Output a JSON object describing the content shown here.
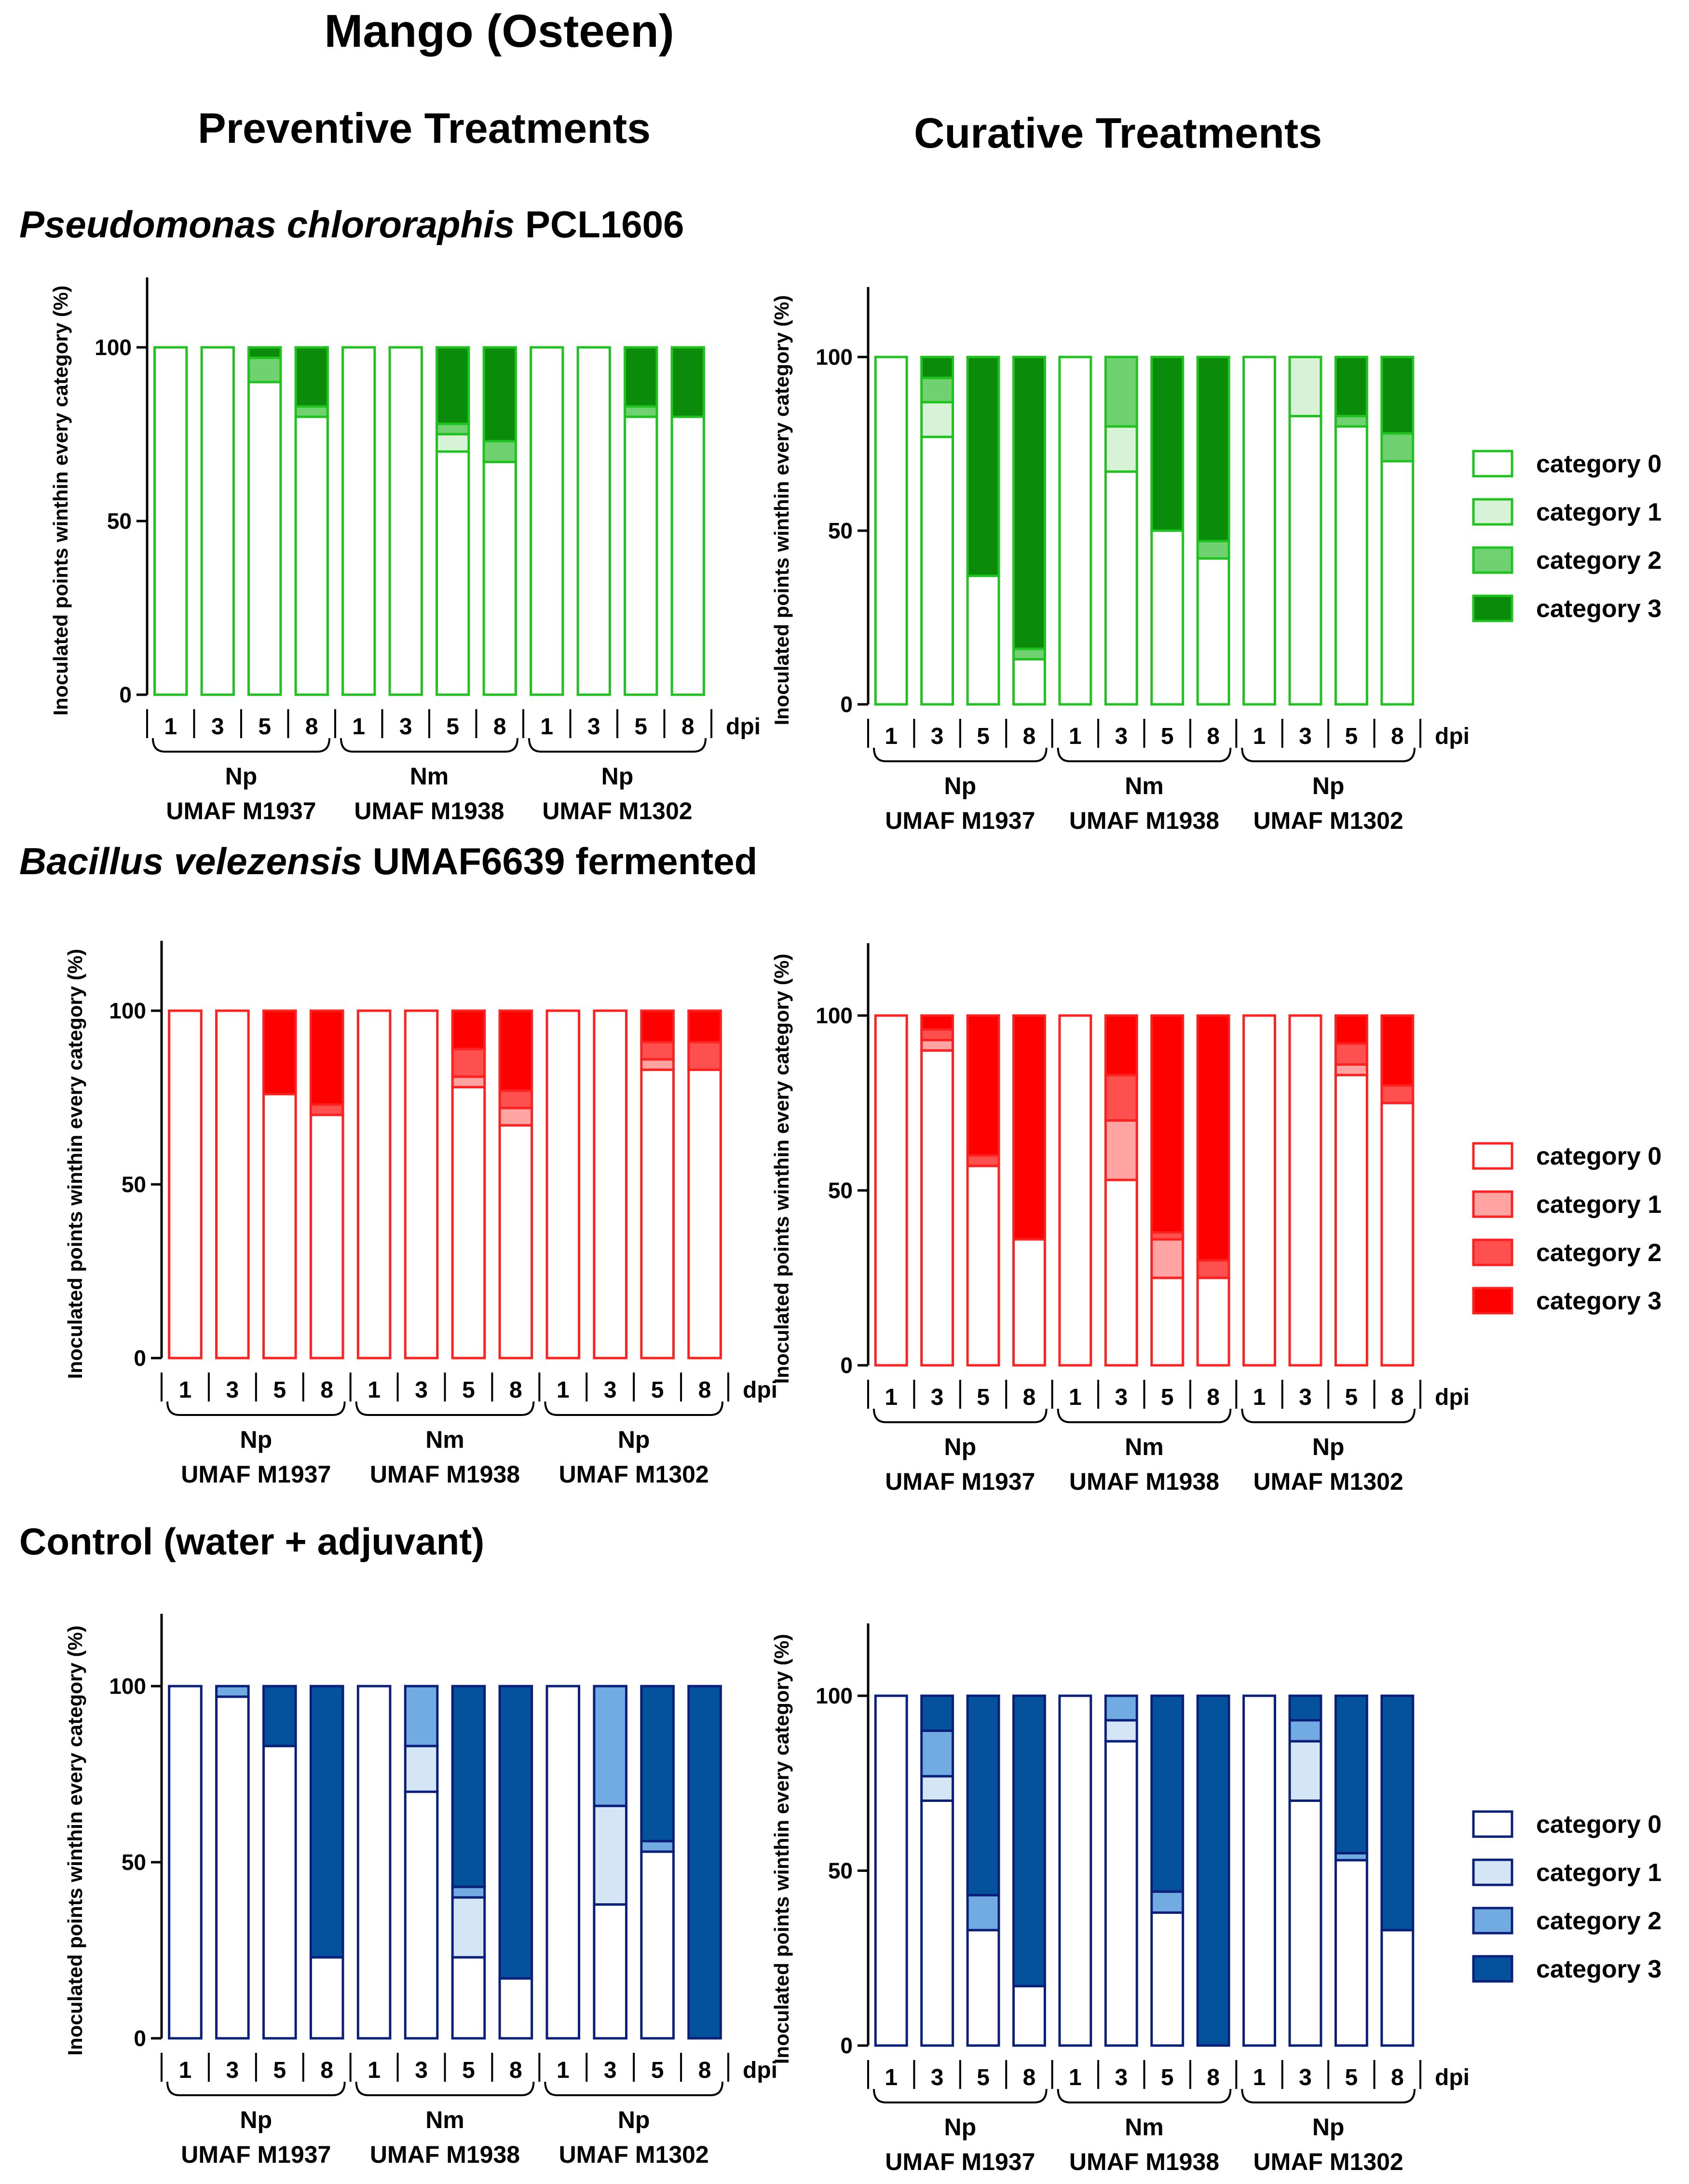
{
  "title": "Mango (Osteen)",
  "column_titles": {
    "preventive": "Preventive Treatments",
    "curative": "Curative Treatments"
  },
  "sections": [
    {
      "organism_italic": "Pseudomonas chlororaphis",
      "organism_rest": " PCL1606"
    },
    {
      "organism_italic": "Bacillus velezensis",
      "organism_rest": " UMAF6639 fermented"
    },
    {
      "organism_italic": "",
      "organism_rest": "Control (water + adjuvant)"
    }
  ],
  "ylabel": "Inoculated points winthin every category (%)",
  "yticks": [
    0,
    50,
    100
  ],
  "ylim": [
    0,
    120
  ],
  "xticks": [
    "1",
    "3",
    "5",
    "8"
  ],
  "dpi_label": "dpi",
  "groups": [
    {
      "species": "Np",
      "isolate": "UMAF M1937"
    },
    {
      "species": "Nm",
      "isolate": "UMAF M1938"
    },
    {
      "species": "Np",
      "isolate": "UMAF M1302"
    }
  ],
  "legend_labels": [
    "category 0",
    "category 1",
    "category 2",
    "category 3"
  ],
  "palettes": [
    {
      "stroke": "#1fc21f",
      "fills": [
        "#ffffff",
        "#d8f2d8",
        "#6fd16f",
        "#0a8c0a"
      ]
    },
    {
      "stroke": "#ff2020",
      "fills": [
        "#ffffff",
        "#ffa3a3",
        "#ff5050",
        "#ff0000"
      ]
    },
    {
      "stroke": "#0a1f7a",
      "fills": [
        "#ffffff",
        "#d4e6f6",
        "#72abe2",
        "#04529c"
      ]
    }
  ],
  "chart_data": [
    {
      "type": "bar",
      "stacked": true,
      "title": "Pseudomonas chlororaphis PCL1606 - Preventive Treatments",
      "ylabel": "Inoculated points winthin every category (%)",
      "xlabel": "dpi",
      "ylim": [
        0,
        120
      ],
      "categories": [
        "Np M1937 1",
        "Np M1937 3",
        "Np M1937 5",
        "Np M1937 8",
        "Nm M1938 1",
        "Nm M1938 3",
        "Nm M1938 5",
        "Nm M1938 8",
        "Np M1302 1",
        "Np M1302 3",
        "Np M1302 5",
        "Np M1302 8"
      ],
      "series": [
        {
          "name": "category 0",
          "values": [
            100,
            100,
            90,
            80,
            100,
            100,
            70,
            67,
            100,
            100,
            80,
            80
          ]
        },
        {
          "name": "category 1",
          "values": [
            0,
            0,
            0,
            0,
            0,
            0,
            5,
            0,
            0,
            0,
            0,
            0
          ]
        },
        {
          "name": "category 2",
          "values": [
            0,
            0,
            7,
            3,
            0,
            0,
            3,
            6,
            0,
            0,
            3,
            0
          ]
        },
        {
          "name": "category 3",
          "values": [
            0,
            0,
            3,
            17,
            0,
            0,
            22,
            27,
            0,
            0,
            17,
            20
          ]
        }
      ]
    },
    {
      "type": "bar",
      "stacked": true,
      "title": "Pseudomonas chlororaphis PCL1606 - Curative Treatments",
      "ylabel": "Inoculated points winthin every category (%)",
      "xlabel": "dpi",
      "ylim": [
        0,
        120
      ],
      "categories": [
        "Np M1937 1",
        "Np M1937 3",
        "Np M1937 5",
        "Np M1937 8",
        "Nm M1938 1",
        "Nm M1938 3",
        "Nm M1938 5",
        "Nm M1938 8",
        "Np M1302 1",
        "Np M1302 3",
        "Np M1302 5",
        "Np M1302 8"
      ],
      "series": [
        {
          "name": "category 0",
          "values": [
            100,
            77,
            37,
            13,
            100,
            67,
            50,
            42,
            100,
            83,
            80,
            70
          ]
        },
        {
          "name": "category 1",
          "values": [
            0,
            10,
            0,
            0,
            0,
            13,
            0,
            0,
            0,
            17,
            0,
            0
          ]
        },
        {
          "name": "category 2",
          "values": [
            0,
            7,
            0,
            3,
            0,
            20,
            0,
            5,
            0,
            0,
            3,
            8
          ]
        },
        {
          "name": "category 3",
          "values": [
            0,
            6,
            63,
            84,
            0,
            0,
            50,
            53,
            0,
            0,
            17,
            22
          ]
        }
      ]
    },
    {
      "type": "bar",
      "stacked": true,
      "title": "Bacillus velezensis UMAF6639 fermented - Preventive Treatments",
      "ylabel": "Inoculated points winthin every category (%)",
      "xlabel": "dpi",
      "ylim": [
        0,
        120
      ],
      "categories": [
        "Np M1937 1",
        "Np M1937 3",
        "Np M1937 5",
        "Np M1937 8",
        "Nm M1938 1",
        "Nm M1938 3",
        "Nm M1938 5",
        "Nm M1938 8",
        "Np M1302 1",
        "Np M1302 3",
        "Np M1302 5",
        "Np M1302 8"
      ],
      "series": [
        {
          "name": "category 0",
          "values": [
            100,
            100,
            76,
            70,
            100,
            100,
            78,
            67,
            100,
            100,
            83,
            83
          ]
        },
        {
          "name": "category 1",
          "values": [
            0,
            0,
            0,
            0,
            0,
            0,
            3,
            5,
            0,
            0,
            3,
            0
          ]
        },
        {
          "name": "category 2",
          "values": [
            0,
            0,
            0,
            3,
            0,
            0,
            8,
            5,
            0,
            0,
            5,
            8
          ]
        },
        {
          "name": "category 3",
          "values": [
            0,
            0,
            24,
            27,
            0,
            0,
            11,
            23,
            0,
            0,
            9,
            9
          ]
        }
      ]
    },
    {
      "type": "bar",
      "stacked": true,
      "title": "Bacillus velezensis UMAF6639 fermented - Curative Treatments",
      "ylabel": "Inoculated points winthin every category (%)",
      "xlabel": "dpi",
      "ylim": [
        0,
        120
      ],
      "categories": [
        "Np M1937 1",
        "Np M1937 3",
        "Np M1937 5",
        "Np M1937 8",
        "Nm M1938 1",
        "Nm M1938 3",
        "Nm M1938 5",
        "Nm M1938 8",
        "Np M1302 1",
        "Np M1302 3",
        "Np M1302 5",
        "Np M1302 8"
      ],
      "series": [
        {
          "name": "category 0",
          "values": [
            100,
            90,
            57,
            36,
            100,
            53,
            25,
            25,
            100,
            100,
            83,
            75
          ]
        },
        {
          "name": "category 1",
          "values": [
            0,
            3,
            0,
            0,
            0,
            17,
            11,
            0,
            0,
            0,
            3,
            0
          ]
        },
        {
          "name": "category 2",
          "values": [
            0,
            3,
            3,
            0,
            0,
            13,
            2,
            5,
            0,
            0,
            6,
            5
          ]
        },
        {
          "name": "category 3",
          "values": [
            0,
            4,
            40,
            64,
            0,
            17,
            62,
            70,
            0,
            0,
            8,
            20
          ]
        }
      ]
    },
    {
      "type": "bar",
      "stacked": true,
      "title": "Control (water + adjuvant) - Preventive Treatments",
      "ylabel": "Inoculated points winthin every category (%)",
      "xlabel": "dpi",
      "ylim": [
        0,
        120
      ],
      "categories": [
        "Np M1937 1",
        "Np M1937 3",
        "Np M1937 5",
        "Np M1937 8",
        "Nm M1938 1",
        "Nm M1938 3",
        "Nm M1938 5",
        "Nm M1938 8",
        "Np M1302 1",
        "Np M1302 3",
        "Np M1302 5",
        "Np M1302 8"
      ],
      "series": [
        {
          "name": "category 0",
          "values": [
            100,
            97,
            83,
            23,
            100,
            70,
            23,
            17,
            100,
            38,
            53,
            0
          ]
        },
        {
          "name": "category 1",
          "values": [
            0,
            0,
            0,
            0,
            0,
            13,
            17,
            0,
            0,
            28,
            0,
            0
          ]
        },
        {
          "name": "category 2",
          "values": [
            0,
            3,
            0,
            0,
            0,
            17,
            3,
            0,
            0,
            34,
            3,
            0
          ]
        },
        {
          "name": "category 3",
          "values": [
            0,
            0,
            17,
            77,
            0,
            0,
            57,
            83,
            0,
            0,
            44,
            100
          ]
        }
      ]
    },
    {
      "type": "bar",
      "stacked": true,
      "title": "Control (water + adjuvant) - Curative Treatments",
      "ylabel": "Inoculated points winthin every category (%)",
      "xlabel": "dpi",
      "ylim": [
        0,
        120
      ],
      "categories": [
        "Np M1937 1",
        "Np M1937 3",
        "Np M1937 5",
        "Np M1937 8",
        "Nm M1938 1",
        "Nm M1938 3",
        "Nm M1938 5",
        "Nm M1938 8",
        "Np M1302 1",
        "Np M1302 3",
        "Np M1302 5",
        "Np M1302 8"
      ],
      "series": [
        {
          "name": "category 0",
          "values": [
            100,
            70,
            33,
            17,
            100,
            87,
            38,
            0,
            100,
            70,
            53,
            33
          ]
        },
        {
          "name": "category 1",
          "values": [
            0,
            7,
            0,
            0,
            0,
            6,
            0,
            0,
            0,
            17,
            0,
            0
          ]
        },
        {
          "name": "category 2",
          "values": [
            0,
            13,
            10,
            0,
            0,
            7,
            6,
            0,
            0,
            6,
            2,
            0
          ]
        },
        {
          "name": "category 3",
          "values": [
            0,
            10,
            57,
            83,
            0,
            0,
            56,
            100,
            0,
            7,
            45,
            67
          ]
        }
      ]
    }
  ]
}
